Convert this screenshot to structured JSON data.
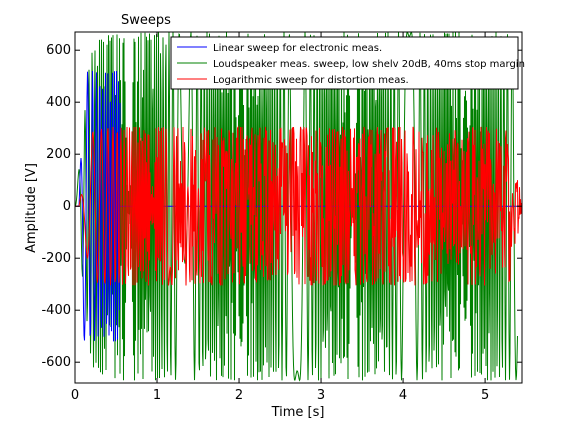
{
  "chart_data": {
    "type": "line",
    "title": "Sweeps",
    "xlabel": "Time [s]",
    "ylabel": "Amplitude [V]",
    "xlim": [
      0,
      5.45
    ],
    "ylim": [
      -680,
      670
    ],
    "xticks": [
      0,
      1,
      2,
      3,
      4,
      5
    ],
    "xtick_labels": [
      "0",
      "1",
      "2",
      "3",
      "4",
      "5"
    ],
    "yticks": [
      -600,
      -400,
      -200,
      0,
      200,
      400,
      600
    ],
    "ytick_labels": [
      "-600",
      "-400",
      "-200",
      "0",
      "200",
      "400",
      "600"
    ],
    "grid": false,
    "legend_position": "top-right",
    "series": [
      {
        "name": "Linear sweep for electronic meas.",
        "color": "#0000ff",
        "amplitude": 520,
        "x": [
          0,
          0.05,
          0.1,
          0.2,
          0.3,
          0.4,
          0.5,
          0.55
        ],
        "envelope": [
          0,
          0,
          520,
          520,
          520,
          520,
          520,
          520
        ]
      },
      {
        "name": "Loudspeaker meas. sweep, low shelv 20dB, 40ms stop margin",
        "color": "#008000",
        "amplitude": 670,
        "x": [
          0,
          0.1,
          0.2,
          0.4,
          0.6,
          1.0,
          2.0,
          3.0,
          4.0,
          5.0,
          5.4
        ],
        "envelope": [
          0,
          300,
          620,
          660,
          670,
          670,
          670,
          670,
          670,
          670,
          670
        ]
      },
      {
        "name": "Logarithmic sweep for distortion meas.",
        "color": "#ff0000",
        "amplitude": 305,
        "x": [
          0,
          0.05,
          0.15,
          0.22,
          0.4,
          1.0,
          2.0,
          3.0,
          4.0,
          5.0,
          5.33,
          5.45
        ],
        "envelope": [
          0,
          0,
          200,
          290,
          305,
          305,
          305,
          305,
          305,
          305,
          290,
          0
        ]
      }
    ]
  }
}
